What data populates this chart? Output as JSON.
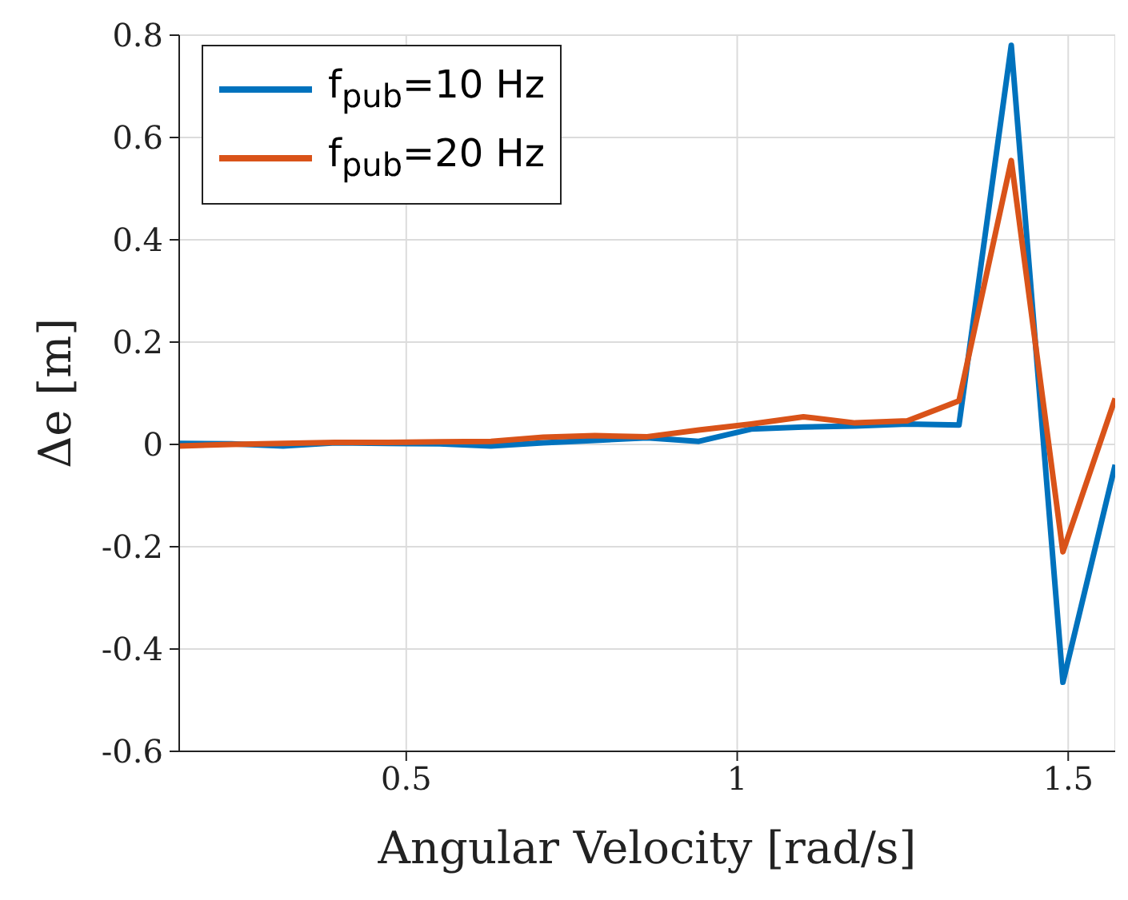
{
  "chart_data": {
    "type": "line",
    "xlabel": "Angular Velocity [rad/s]",
    "ylabel": "Δe [m]",
    "x": [
      0.157,
      0.236,
      0.314,
      0.393,
      0.471,
      0.55,
      0.628,
      0.707,
      0.785,
      0.864,
      0.942,
      1.021,
      1.1,
      1.178,
      1.257,
      1.335,
      1.414,
      1.492,
      1.571
    ],
    "series": [
      {
        "name": "f$_{pub}$=10 Hz",
        "color": "#0072bd",
        "values": [
          0.002,
          0.001,
          -0.003,
          0.003,
          0.002,
          0.001,
          -0.003,
          0.003,
          0.008,
          0.013,
          0.006,
          0.03,
          0.034,
          0.036,
          0.04,
          0.038,
          0.78,
          -0.465,
          -0.04
        ]
      },
      {
        "name": "f$_{pub}$=20 Hz",
        "color": "#d95319",
        "values": [
          -0.003,
          0,
          0.002,
          0.004,
          0.004,
          0.005,
          0.006,
          0.014,
          0.017,
          0.015,
          0.028,
          0.04,
          0.054,
          0.042,
          0.046,
          0.085,
          0.555,
          -0.21,
          0.09
        ]
      }
    ],
    "xlim": [
      0.157,
      1.571
    ],
    "xticks": [
      0.5,
      1,
      1.5
    ],
    "ylim": [
      -0.6,
      0.8
    ],
    "yticks": [
      -0.6,
      -0.4,
      -0.2,
      0,
      0.2,
      0.4,
      0.6,
      0.8
    ],
    "grid": true,
    "legend": "top left",
    "marker": "none",
    "line_style": "solid"
  }
}
